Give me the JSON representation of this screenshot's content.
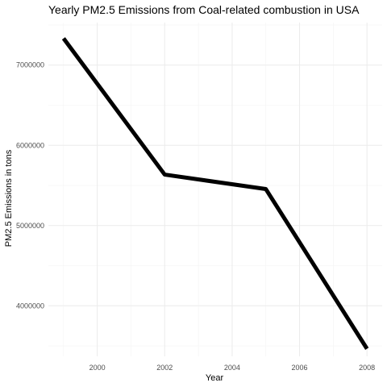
{
  "chart_data": {
    "type": "line",
    "title": "Yearly PM2.5 Emissions from Coal-related combustion in USA",
    "xlabel": "Year",
    "ylabel": "PM2.5 Emissions in tons",
    "x": [
      1999,
      2002,
      2005,
      2008
    ],
    "series": [
      {
        "values": [
          7332967,
          5635342,
          5454738,
          3464206
        ]
      }
    ],
    "xlim": [
      1998.55,
      2008.45
    ],
    "ylim": [
      3370000,
      7530000
    ],
    "x_ticks": [
      2000,
      2002,
      2004,
      2006,
      2008
    ],
    "x_tick_labels": [
      "2000",
      "2002",
      "2004",
      "2006",
      "2008"
    ],
    "y_ticks": [
      4000000,
      5000000,
      6000000,
      7000000
    ],
    "y_tick_labels": [
      "4000000",
      "5000000",
      "6000000",
      "7000000"
    ],
    "line_color": "#000000",
    "grid": true,
    "legend": "none"
  }
}
